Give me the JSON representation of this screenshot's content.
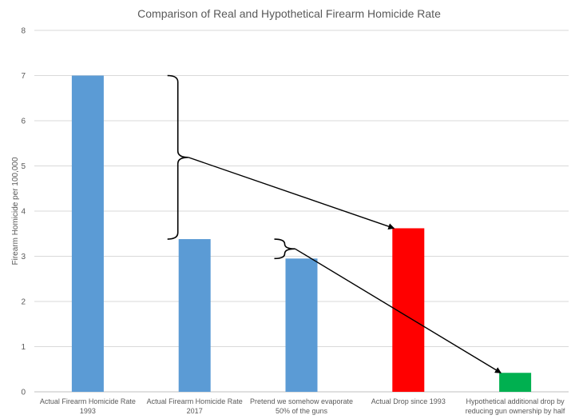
{
  "chart_data": {
    "type": "bar",
    "title": "Comparison of Real and Hypothetical Firearm Homicide Rate",
    "ylabel": "Firearm Homicide per 100,000",
    "xlabel": "",
    "ylim": [
      0,
      8
    ],
    "yticks": [
      0,
      1,
      2,
      3,
      4,
      5,
      6,
      7,
      8
    ],
    "grid": true,
    "categories": [
      [
        "Actual Firearm Homicide Rate",
        "1993"
      ],
      [
        "Actual Firearm Homicide Rate",
        "2017"
      ],
      [
        "Pretend we somehow evaporate",
        "50% of the guns"
      ],
      [
        "Actual Drop since 1993"
      ],
      [
        "Hypothetical additional drop by",
        "reducing gun ownership by half"
      ]
    ],
    "values": [
      7.0,
      3.38,
      2.95,
      3.62,
      0.42
    ],
    "colors": [
      "#5b9bd5",
      "#5b9bd5",
      "#5b9bd5",
      "#ff0000",
      "#00b050"
    ],
    "annotations": [
      {
        "type": "brace",
        "from_value": 7.0,
        "to_value": 3.38,
        "near_category": 1,
        "arrow_to_category": 3,
        "arrow_to_value": 3.62
      },
      {
        "type": "brace",
        "from_value": 3.38,
        "to_value": 2.95,
        "near_category": 2,
        "arrow_to_category": 4,
        "arrow_to_value": 0.42
      }
    ]
  }
}
